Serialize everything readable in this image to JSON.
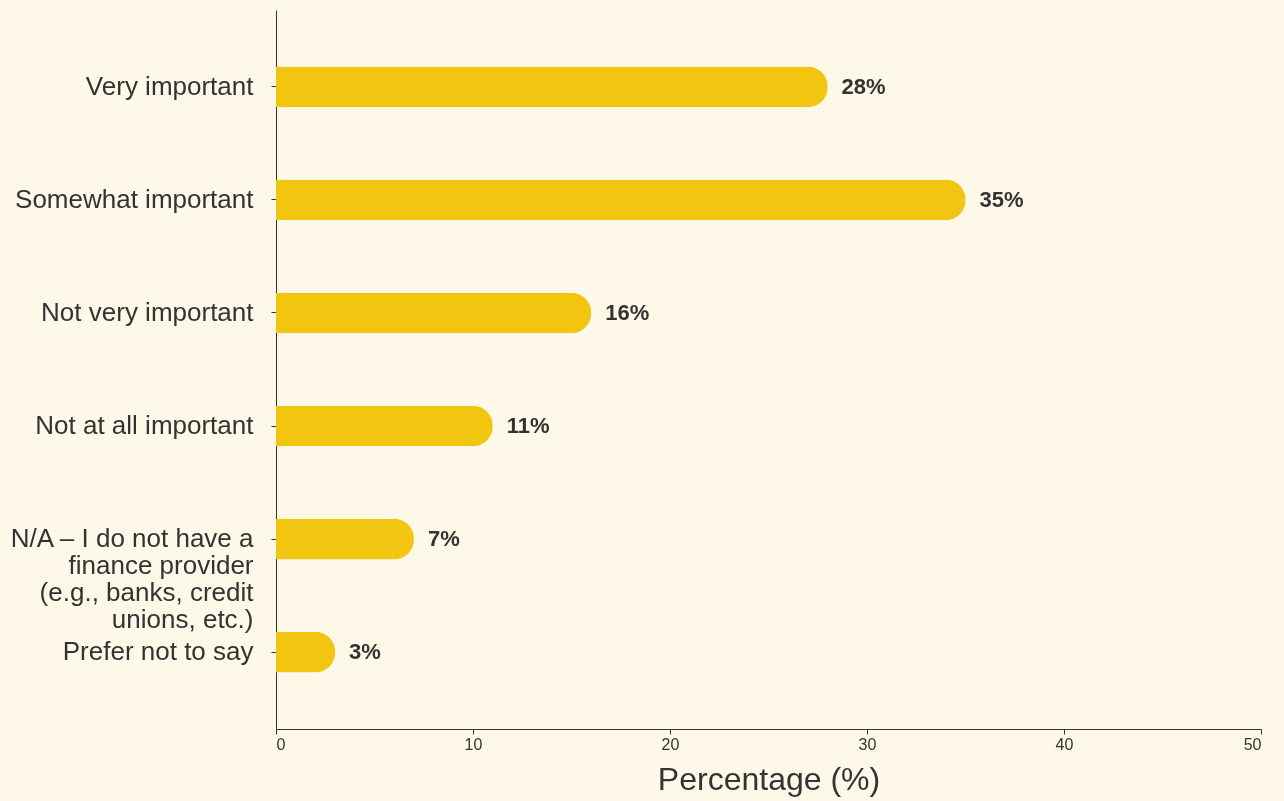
{
  "chart_data": {
    "type": "bar",
    "orientation": "horizontal",
    "categories": [
      "Very important",
      "Somewhat important",
      "Not very important",
      "Not at all important",
      "N/A – I do not have a finance provider (e.g., banks, credit unions, etc.)",
      "Prefer not to say"
    ],
    "values": [
      28,
      35,
      16,
      11,
      7,
      3
    ],
    "value_labels": [
      "28%",
      "35%",
      "16%",
      "11%",
      "7%",
      "3%"
    ],
    "color": "#f2c511",
    "xlim": [
      0,
      50
    ],
    "xticks": [
      0,
      10,
      20,
      30,
      40,
      50
    ],
    "xlabel": "Percentage (%)",
    "grid": false
  }
}
